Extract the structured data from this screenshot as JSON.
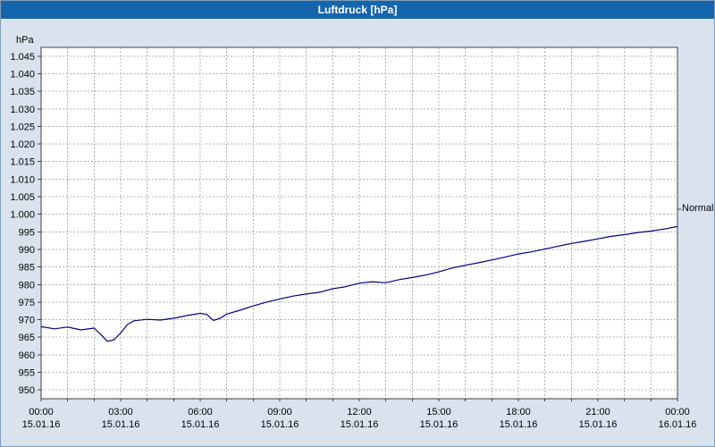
{
  "window": {
    "title": "Luftdruck [hPa]"
  },
  "colors": {
    "titlebar": "#1565ad",
    "titlebar_text": "#ffffff",
    "background": "#d8e3ee",
    "plot_bg": "#ffffff",
    "grid": "#b0b0b0",
    "axis": "#404040",
    "text": "#000000",
    "line": "#000080"
  },
  "chart_data": {
    "type": "line",
    "title": "Luftdruck [hPa]",
    "xlabel": "",
    "ylabel": "hPa",
    "xlim": [
      0,
      24
    ],
    "ylim": [
      947.5,
      1047.5
    ],
    "y_step": 5,
    "x_minor_step_hours": 1,
    "grid": "dashed, hourly vertical and 5 hPa horizontal",
    "legend_position": "none",
    "y_ticks": [
      {
        "label": "1.045",
        "value": 1045
      },
      {
        "label": "1.040",
        "value": 1040
      },
      {
        "label": "1.035",
        "value": 1035
      },
      {
        "label": "1.030",
        "value": 1030
      },
      {
        "label": "1.025",
        "value": 1025
      },
      {
        "label": "1.020",
        "value": 1020
      },
      {
        "label": "1.015",
        "value": 1015
      },
      {
        "label": "1.010",
        "value": 1010
      },
      {
        "label": "1.005",
        "value": 1005
      },
      {
        "label": "1.000",
        "value": 1000
      },
      {
        "label": "995",
        "value": 995
      },
      {
        "label": "990",
        "value": 990
      },
      {
        "label": "985",
        "value": 985
      },
      {
        "label": "980",
        "value": 980
      },
      {
        "label": "975",
        "value": 975
      },
      {
        "label": "970",
        "value": 970
      },
      {
        "label": "965",
        "value": 965
      },
      {
        "label": "960",
        "value": 960
      },
      {
        "label": "955",
        "value": 955
      },
      {
        "label": "950",
        "value": 950
      }
    ],
    "x_ticks": [
      {
        "hour": 0,
        "time": "00:00",
        "date": "15.01.16"
      },
      {
        "hour": 3,
        "time": "03:00",
        "date": "15.01.16"
      },
      {
        "hour": 6,
        "time": "06:00",
        "date": "15.01.16"
      },
      {
        "hour": 9,
        "time": "09:00",
        "date": "15.01.16"
      },
      {
        "hour": 12,
        "time": "12:00",
        "date": "15.01.16"
      },
      {
        "hour": 15,
        "time": "15:00",
        "date": "15.01.16"
      },
      {
        "hour": 18,
        "time": "18:00",
        "date": "15.01.16"
      },
      {
        "hour": 21,
        "time": "21:00",
        "date": "15.01.16"
      },
      {
        "hour": 24,
        "time": "00:00",
        "date": "16.01.16"
      }
    ],
    "annotations": [
      {
        "label": "Normal",
        "value": 1001.5,
        "side": "right"
      }
    ],
    "series": [
      {
        "name": "Luftdruck",
        "color": "#000080",
        "x": [
          0,
          0.5,
          1,
          1.5,
          2,
          2.25,
          2.5,
          2.75,
          3,
          3.25,
          3.5,
          4,
          4.5,
          5,
          5.5,
          6,
          6.25,
          6.5,
          6.75,
          7,
          7.5,
          8,
          8.5,
          9,
          9.5,
          10,
          10.5,
          11,
          11.5,
          12,
          12.5,
          13,
          13.5,
          14,
          14.5,
          15,
          15.5,
          16,
          16.5,
          17,
          17.5,
          18,
          18.5,
          19,
          19.5,
          20,
          20.5,
          21,
          21.5,
          22,
          22.5,
          23,
          23.5,
          24
        ],
        "y": [
          968.0,
          967.4,
          967.9,
          967.1,
          967.6,
          965.8,
          963.8,
          964.3,
          966.2,
          968.6,
          969.7,
          970.1,
          969.9,
          970.4,
          971.2,
          971.8,
          971.5,
          969.8,
          970.4,
          971.6,
          972.7,
          973.9,
          975.0,
          975.9,
          976.7,
          977.3,
          977.8,
          978.8,
          979.4,
          980.4,
          980.8,
          980.5,
          981.4,
          982.0,
          982.7,
          983.6,
          984.7,
          985.5,
          986.2,
          987.0,
          987.8,
          988.7,
          989.3,
          990.1,
          990.9,
          991.7,
          992.3,
          993.0,
          993.7,
          994.2,
          994.8,
          995.2,
          995.8,
          996.5
        ]
      }
    ]
  }
}
